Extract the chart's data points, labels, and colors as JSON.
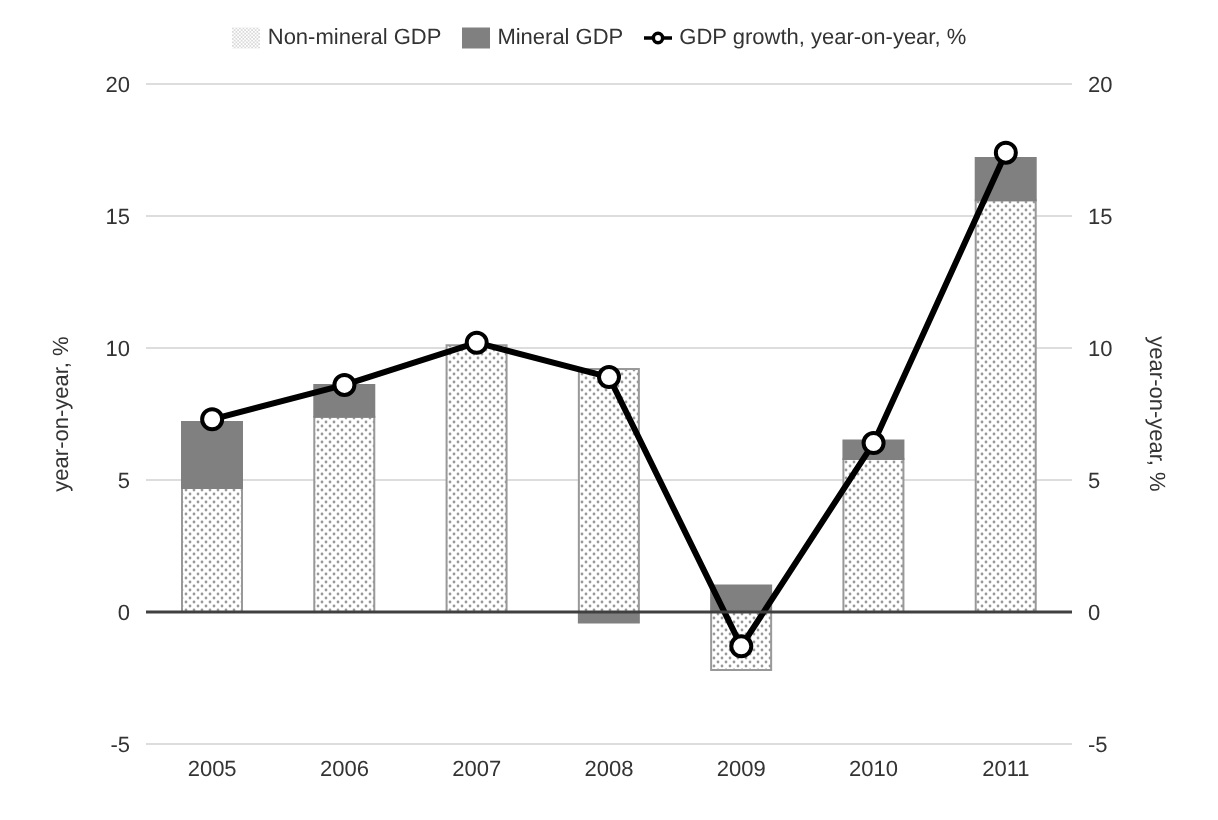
{
  "chart_data": {
    "type": "bar",
    "stacked": true,
    "categories": [
      "2005",
      "2006",
      "2007",
      "2008",
      "2009",
      "2010",
      "2011"
    ],
    "series": [
      {
        "name": "Non-mineral GDP",
        "color": "#999999",
        "values": [
          4.7,
          7.4,
          10.1,
          9.2,
          -2.2,
          5.8,
          15.6
        ]
      },
      {
        "name": "Mineral GDP",
        "color": "#808080",
        "values": [
          2.5,
          1.2,
          0,
          -0.4,
          1.0,
          0.7,
          1.6
        ]
      },
      {
        "name": "GDP growth, year-on-year, %",
        "type": "line",
        "color": "#000000",
        "marker": "circle",
        "values": [
          7.3,
          8.6,
          10.2,
          8.9,
          -1.3,
          6.4,
          17.4
        ]
      }
    ],
    "ylabel": "year-on-year, %",
    "y2label": "year-on-year, %",
    "ylim": [
      -5,
      20
    ],
    "yticks": [
      -5,
      0,
      5,
      10,
      15,
      20
    ],
    "y2lim": [
      -5,
      20
    ],
    "y2ticks": [
      -5,
      0,
      5,
      10,
      15,
      20
    ],
    "grid": "y",
    "legend": "top"
  }
}
